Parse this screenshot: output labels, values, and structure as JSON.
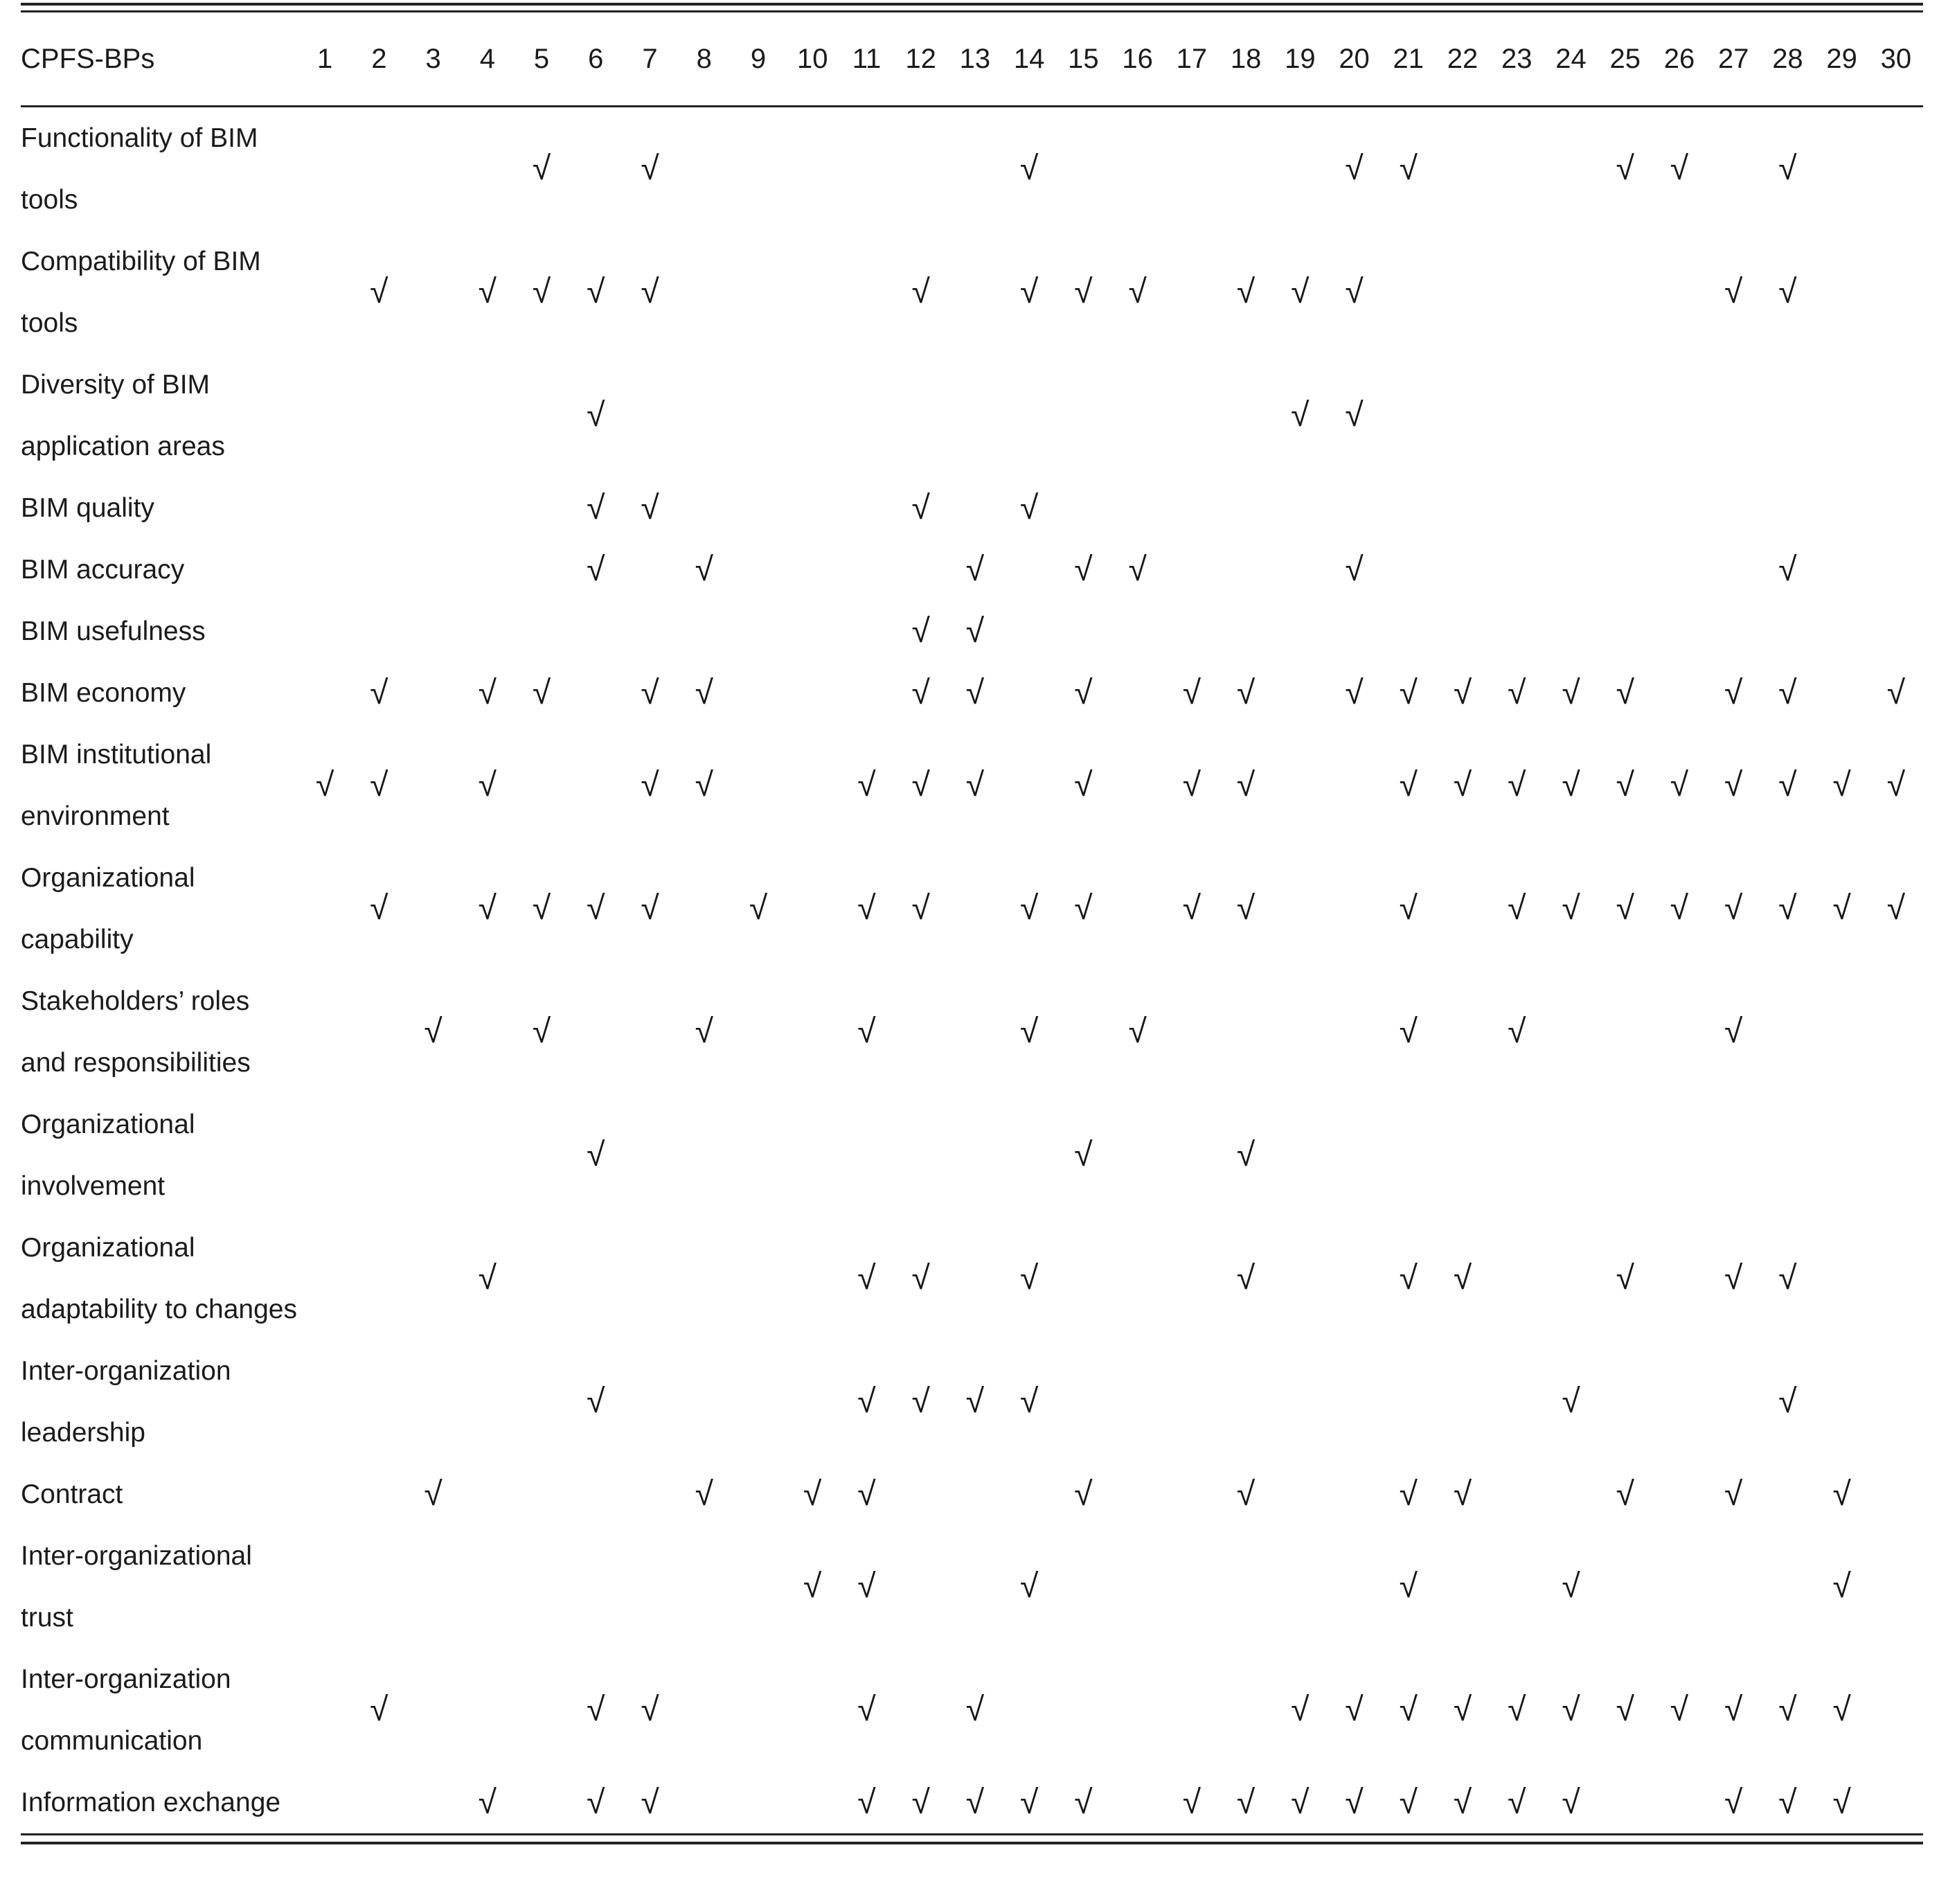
{
  "table": {
    "header": {
      "label": "CPFS-BPs",
      "columns": [
        "1",
        "2",
        "3",
        "4",
        "5",
        "6",
        "7",
        "8",
        "9",
        "10",
        "11",
        "12",
        "13",
        "14",
        "15",
        "16",
        "17",
        "18",
        "19",
        "20",
        "21",
        "22",
        "23",
        "24",
        "25",
        "26",
        "27",
        "28",
        "29",
        "30"
      ]
    },
    "check_symbol": "√",
    "rows": [
      {
        "label": "Functionality of BIM tools",
        "checks": [
          5,
          7,
          14,
          20,
          21,
          25,
          26,
          28
        ]
      },
      {
        "label": "Compatibility of BIM tools",
        "checks": [
          2,
          4,
          5,
          6,
          7,
          12,
          14,
          15,
          16,
          18,
          19,
          20,
          27,
          28
        ]
      },
      {
        "label": "Diversity of BIM application areas",
        "checks": [
          6,
          19,
          20
        ]
      },
      {
        "label": "BIM quality",
        "checks": [
          6,
          7,
          12,
          14
        ]
      },
      {
        "label": "BIM accuracy",
        "checks": [
          6,
          8,
          13,
          15,
          16,
          20,
          28
        ]
      },
      {
        "label": "BIM usefulness",
        "checks": [
          12,
          13
        ]
      },
      {
        "label": "BIM economy",
        "checks": [
          2,
          4,
          5,
          7,
          8,
          12,
          13,
          15,
          17,
          18,
          20,
          21,
          22,
          23,
          24,
          25,
          27,
          28,
          30
        ]
      },
      {
        "label": "BIM institutional environment",
        "checks": [
          1,
          2,
          4,
          7,
          8,
          11,
          12,
          13,
          15,
          17,
          18,
          21,
          22,
          23,
          24,
          25,
          26,
          27,
          28,
          29,
          30
        ]
      },
      {
        "label": "Organizational capability",
        "checks": [
          2,
          4,
          5,
          6,
          7,
          9,
          11,
          12,
          14,
          15,
          17,
          18,
          21,
          23,
          24,
          25,
          26,
          27,
          28,
          29,
          30
        ]
      },
      {
        "label": "Stakeholders’ roles and responsibilities",
        "checks": [
          3,
          5,
          8,
          11,
          14,
          16,
          21,
          23,
          27
        ]
      },
      {
        "label": "Organizational involvement",
        "checks": [
          6,
          15,
          18
        ]
      },
      {
        "label": "Organizational adaptability to changes",
        "checks": [
          4,
          11,
          12,
          14,
          18,
          21,
          22,
          25,
          27,
          28
        ]
      },
      {
        "label": "Inter-organization leadership",
        "checks": [
          6,
          11,
          12,
          13,
          14,
          24,
          28
        ]
      },
      {
        "label": "Contract",
        "checks": [
          3,
          8,
          10,
          11,
          15,
          18,
          21,
          22,
          25,
          27,
          29
        ]
      },
      {
        "label": "Inter-organizational trust",
        "checks": [
          10,
          11,
          14,
          21,
          24,
          29
        ]
      },
      {
        "label": "Inter-organization communication",
        "checks": [
          2,
          6,
          7,
          11,
          13,
          19,
          20,
          21,
          22,
          23,
          24,
          25,
          26,
          27,
          28,
          29
        ]
      },
      {
        "label": "Information exchange",
        "checks": [
          4,
          6,
          7,
          11,
          12,
          13,
          14,
          15,
          17,
          18,
          19,
          20,
          21,
          22,
          23,
          24,
          27,
          28,
          29
        ]
      }
    ]
  },
  "colors": {
    "background": "#ffffff",
    "text": "#1b1b1b",
    "rule": "#222222"
  }
}
